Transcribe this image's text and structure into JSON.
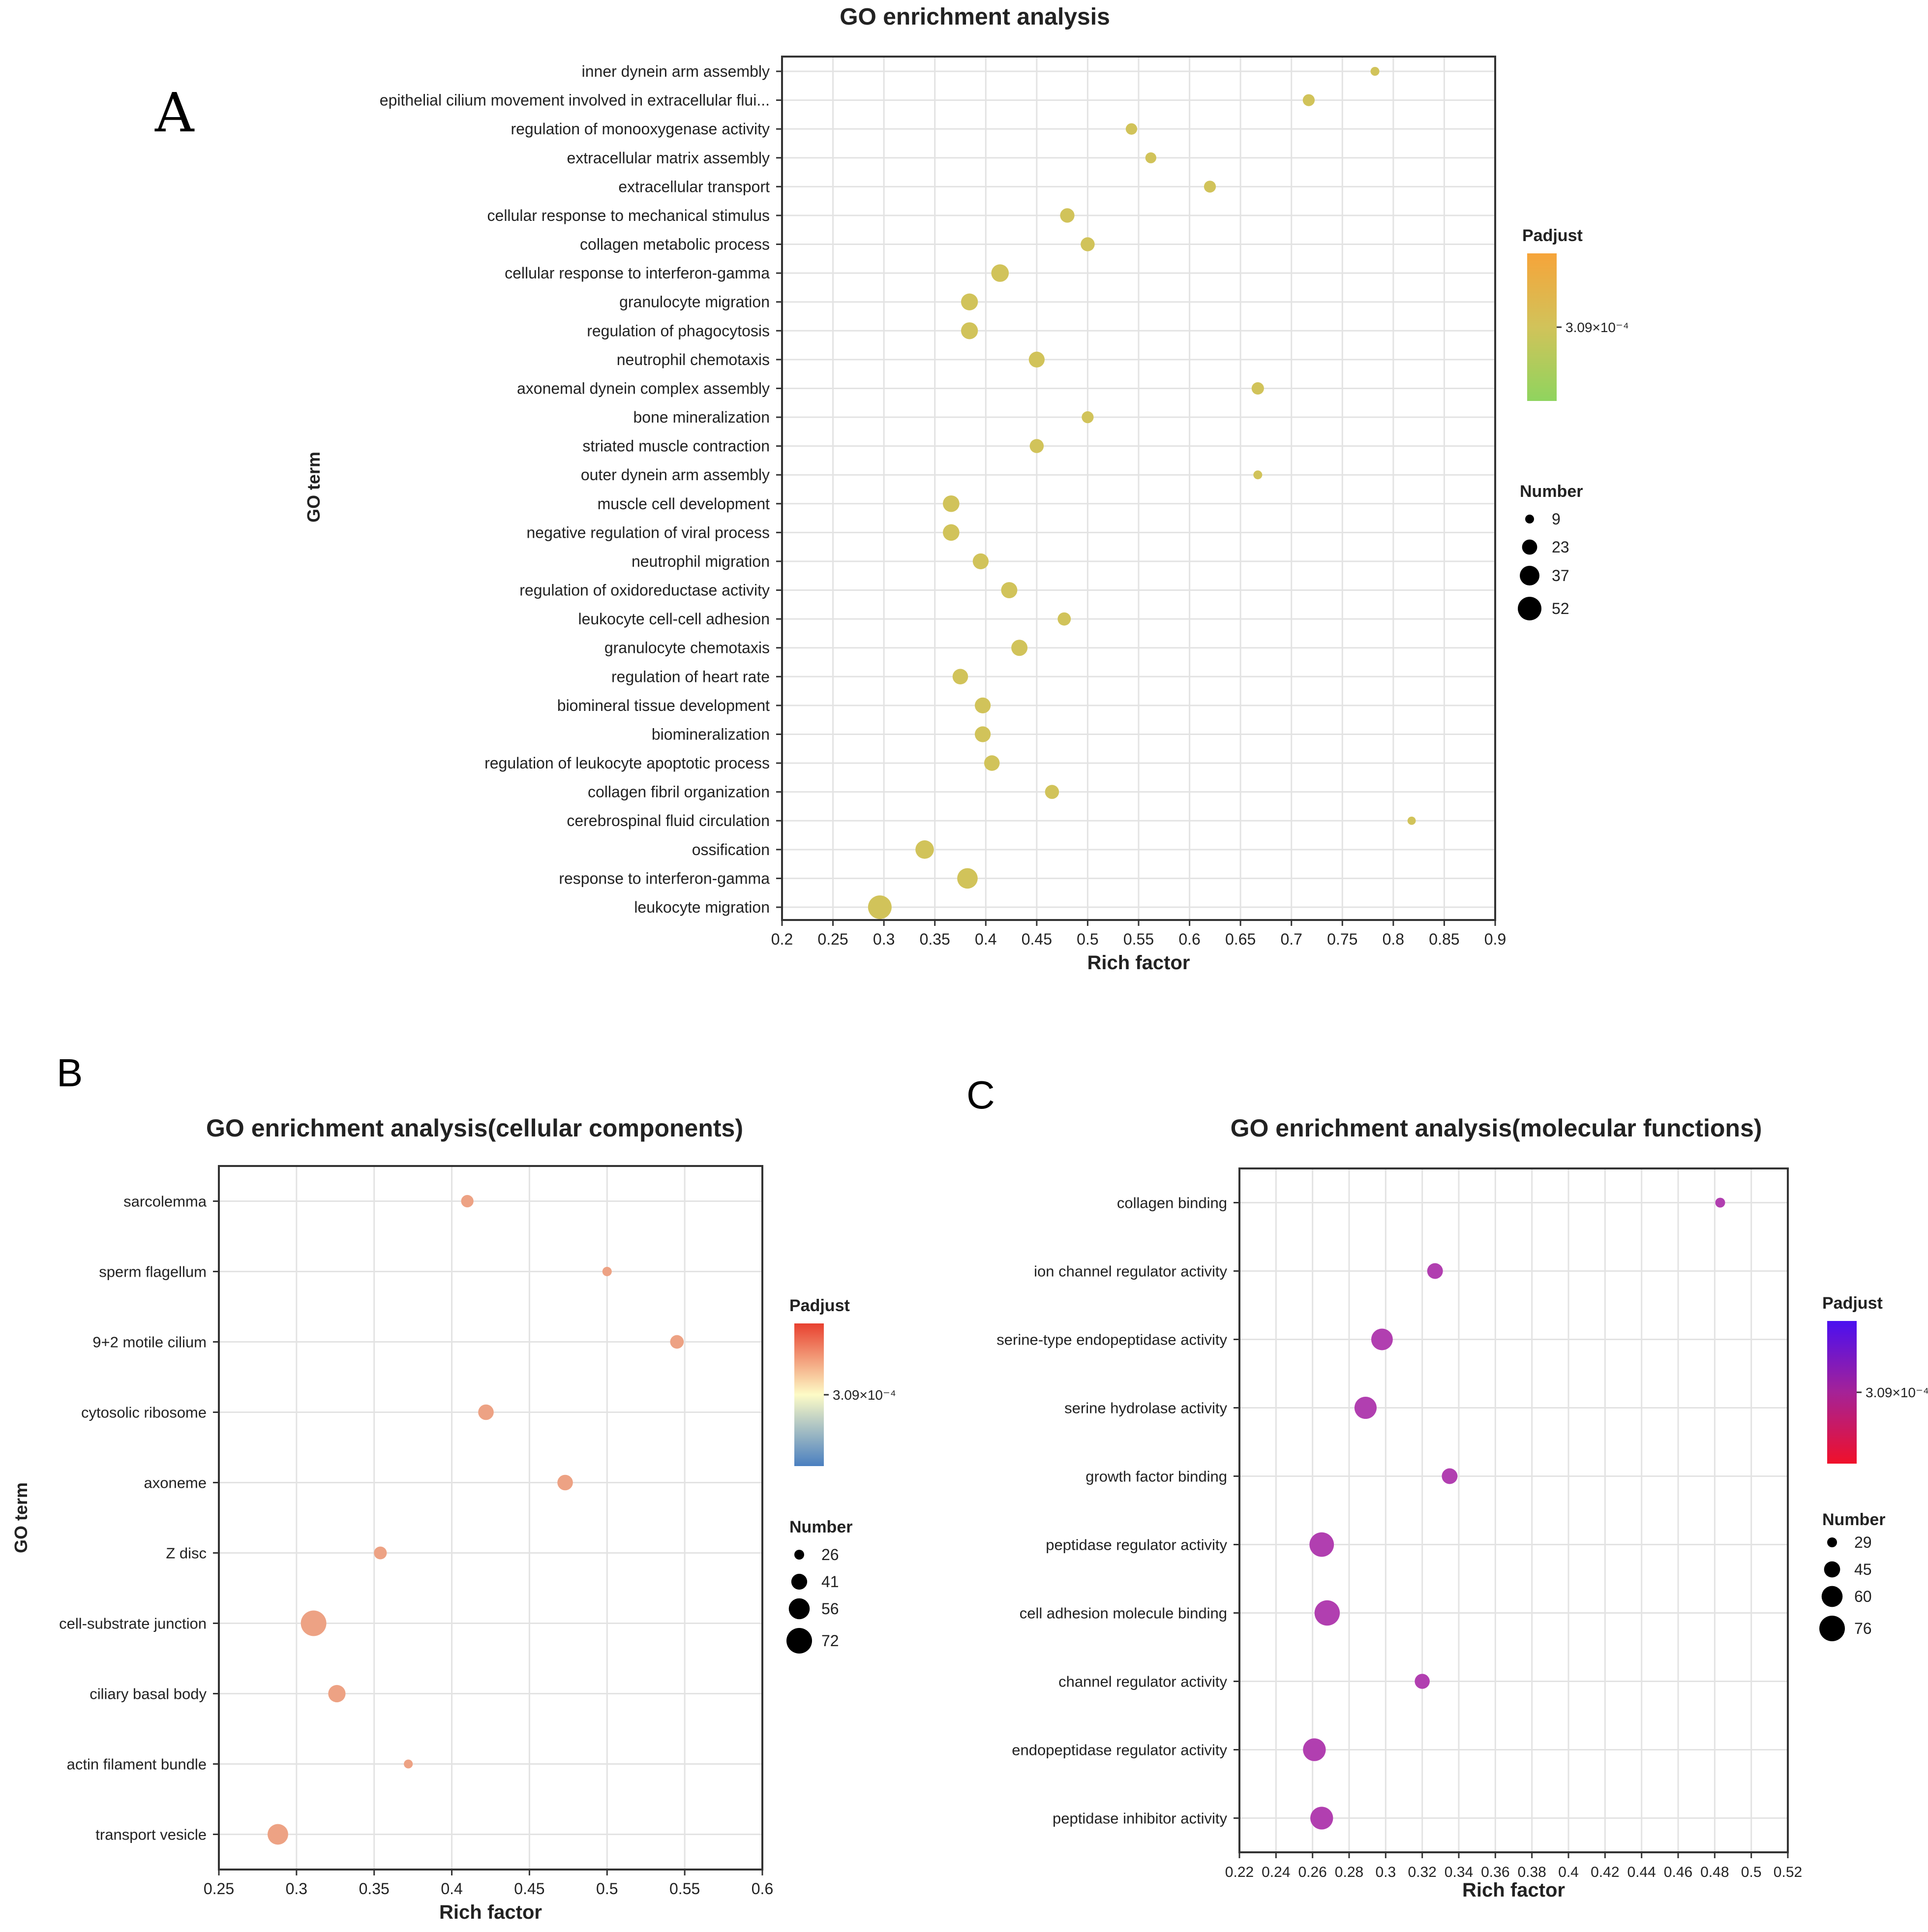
{
  "chart_data": [
    {
      "panel": "A",
      "type": "scatter",
      "title": "GO enrichment analysis",
      "xlabel": "Rich factor",
      "ylabel": "GO term",
      "xlim": [
        0.2,
        0.9
      ],
      "xticks": [
        0.2,
        0.25,
        0.3,
        0.35,
        0.4,
        0.45,
        0.5,
        0.55,
        0.6,
        0.65,
        0.7,
        0.75,
        0.8,
        0.85,
        0.9
      ],
      "color": "#d1c35a",
      "colorbar": {
        "label": "Padjust",
        "tick": "3.09×10⁻⁴",
        "top": "#f6a43a",
        "mid": "#d1c35a",
        "bottom": "#8fd45e"
      },
      "size_legend": {
        "label": "Number",
        "values": [
          9,
          23,
          37,
          52
        ]
      },
      "points": [
        {
          "term": "inner dynein arm assembly",
          "x": 0.782,
          "n": 9
        },
        {
          "term": "epithelial cilium movement involved in extracellular flui...",
          "x": 0.717,
          "n": 15
        },
        {
          "term": "regulation of monooxygenase activity",
          "x": 0.543,
          "n": 14
        },
        {
          "term": "extracellular matrix assembly",
          "x": 0.562,
          "n": 13
        },
        {
          "term": "extracellular transport",
          "x": 0.62,
          "n": 15
        },
        {
          "term": "cellular response to mechanical stimulus",
          "x": 0.48,
          "n": 21
        },
        {
          "term": "collagen metabolic process",
          "x": 0.5,
          "n": 20
        },
        {
          "term": "cellular response to interferon-gamma",
          "x": 0.414,
          "n": 30
        },
        {
          "term": "granulocyte migration",
          "x": 0.384,
          "n": 28
        },
        {
          "term": "regulation of phagocytosis",
          "x": 0.384,
          "n": 28
        },
        {
          "term": "neutrophil chemotaxis",
          "x": 0.45,
          "n": 25
        },
        {
          "term": "axonemal dynein complex assembly",
          "x": 0.667,
          "n": 16
        },
        {
          "term": "bone mineralization",
          "x": 0.5,
          "n": 15
        },
        {
          "term": "striated muscle contraction",
          "x": 0.45,
          "n": 20
        },
        {
          "term": "outer dynein arm assembly",
          "x": 0.667,
          "n": 9
        },
        {
          "term": "muscle cell development",
          "x": 0.366,
          "n": 27
        },
        {
          "term": "negative regulation of viral process",
          "x": 0.366,
          "n": 27
        },
        {
          "term": "neutrophil migration",
          "x": 0.395,
          "n": 25
        },
        {
          "term": "regulation of oxidoreductase activity",
          "x": 0.423,
          "n": 26
        },
        {
          "term": "leukocyte cell-cell adhesion",
          "x": 0.477,
          "n": 18
        },
        {
          "term": "granulocyte chemotaxis",
          "x": 0.433,
          "n": 26
        },
        {
          "term": "regulation of heart rate",
          "x": 0.375,
          "n": 24
        },
        {
          "term": "biomineral tissue development",
          "x": 0.397,
          "n": 25
        },
        {
          "term": "biomineralization",
          "x": 0.397,
          "n": 25
        },
        {
          "term": "regulation of leukocyte apoptotic process",
          "x": 0.406,
          "n": 24
        },
        {
          "term": "collagen fibril organization",
          "x": 0.465,
          "n": 20
        },
        {
          "term": "cerebrospinal fluid circulation",
          "x": 0.818,
          "n": 8
        },
        {
          "term": "ossification",
          "x": 0.34,
          "n": 33
        },
        {
          "term": "response to interferon-gamma",
          "x": 0.382,
          "n": 40
        },
        {
          "term": "leukocyte migration",
          "x": 0.296,
          "n": 52
        }
      ]
    },
    {
      "panel": "B",
      "type": "scatter",
      "title": "GO enrichment analysis(cellular components)",
      "xlabel": "Rich factor",
      "ylabel": "GO term",
      "xlim": [
        0.25,
        0.6
      ],
      "xticks": [
        0.25,
        0.3,
        0.35,
        0.4,
        0.45,
        0.5,
        0.55,
        0.6
      ],
      "color": "#eda284",
      "colorbar": {
        "label": "Padjust",
        "tick": "3.09×10⁻⁴",
        "top": "#e8402f",
        "mid": "#fdfbc6",
        "bottom": "#4a7fc0"
      },
      "size_legend": {
        "label": "Number",
        "values": [
          26,
          41,
          56,
          72
        ]
      },
      "points": [
        {
          "term": "sarcolemma",
          "x": 0.41,
          "n": 32
        },
        {
          "term": "sperm flagellum",
          "x": 0.5,
          "n": 25
        },
        {
          "term": "9+2 motile cilium",
          "x": 0.545,
          "n": 35
        },
        {
          "term": "cytosolic ribosome",
          "x": 0.422,
          "n": 40
        },
        {
          "term": "axoneme",
          "x": 0.473,
          "n": 40
        },
        {
          "term": "Z disc",
          "x": 0.354,
          "n": 33
        },
        {
          "term": "cell-substrate junction",
          "x": 0.311,
          "n": 72
        },
        {
          "term": "ciliary basal body",
          "x": 0.326,
          "n": 45
        },
        {
          "term": "actin filament bundle",
          "x": 0.372,
          "n": 24
        },
        {
          "term": "transport vesicle",
          "x": 0.288,
          "n": 55
        }
      ]
    },
    {
      "panel": "C",
      "type": "scatter",
      "title": "GO enrichment analysis(molecular functions)",
      "xlabel": "Rich factor",
      "ylabel": "GO term",
      "xlim": [
        0.22,
        0.52
      ],
      "xticks": [
        0.22,
        0.24,
        0.26,
        0.28,
        0.3,
        0.32,
        0.34,
        0.36,
        0.38,
        0.4,
        0.42,
        0.44,
        0.46,
        0.48,
        0.5,
        0.52
      ],
      "color": "#b13fb0",
      "colorbar": {
        "label": "Padjust",
        "tick": "3.09×10⁻⁴",
        "top": "#4b0ff0",
        "mid": "#a52297",
        "bottom": "#f0102a"
      },
      "size_legend": {
        "label": "Number",
        "values": [
          29,
          45,
          60,
          76
        ]
      },
      "points": [
        {
          "term": "collagen binding",
          "x": 0.483,
          "n": 29
        },
        {
          "term": "ion channel regulator activity",
          "x": 0.327,
          "n": 44
        },
        {
          "term": "serine-type endopeptidase activity",
          "x": 0.298,
          "n": 62
        },
        {
          "term": "serine hydrolase activity",
          "x": 0.289,
          "n": 64
        },
        {
          "term": "growth factor binding",
          "x": 0.335,
          "n": 44
        },
        {
          "term": "peptidase regulator activity",
          "x": 0.265,
          "n": 72
        },
        {
          "term": "cell adhesion molecule binding",
          "x": 0.268,
          "n": 75
        },
        {
          "term": "channel regulator activity",
          "x": 0.32,
          "n": 42
        },
        {
          "term": "endopeptidase regulator activity",
          "x": 0.261,
          "n": 66
        },
        {
          "term": "peptidase inhibitor activity",
          "x": 0.265,
          "n": 66
        }
      ]
    }
  ]
}
